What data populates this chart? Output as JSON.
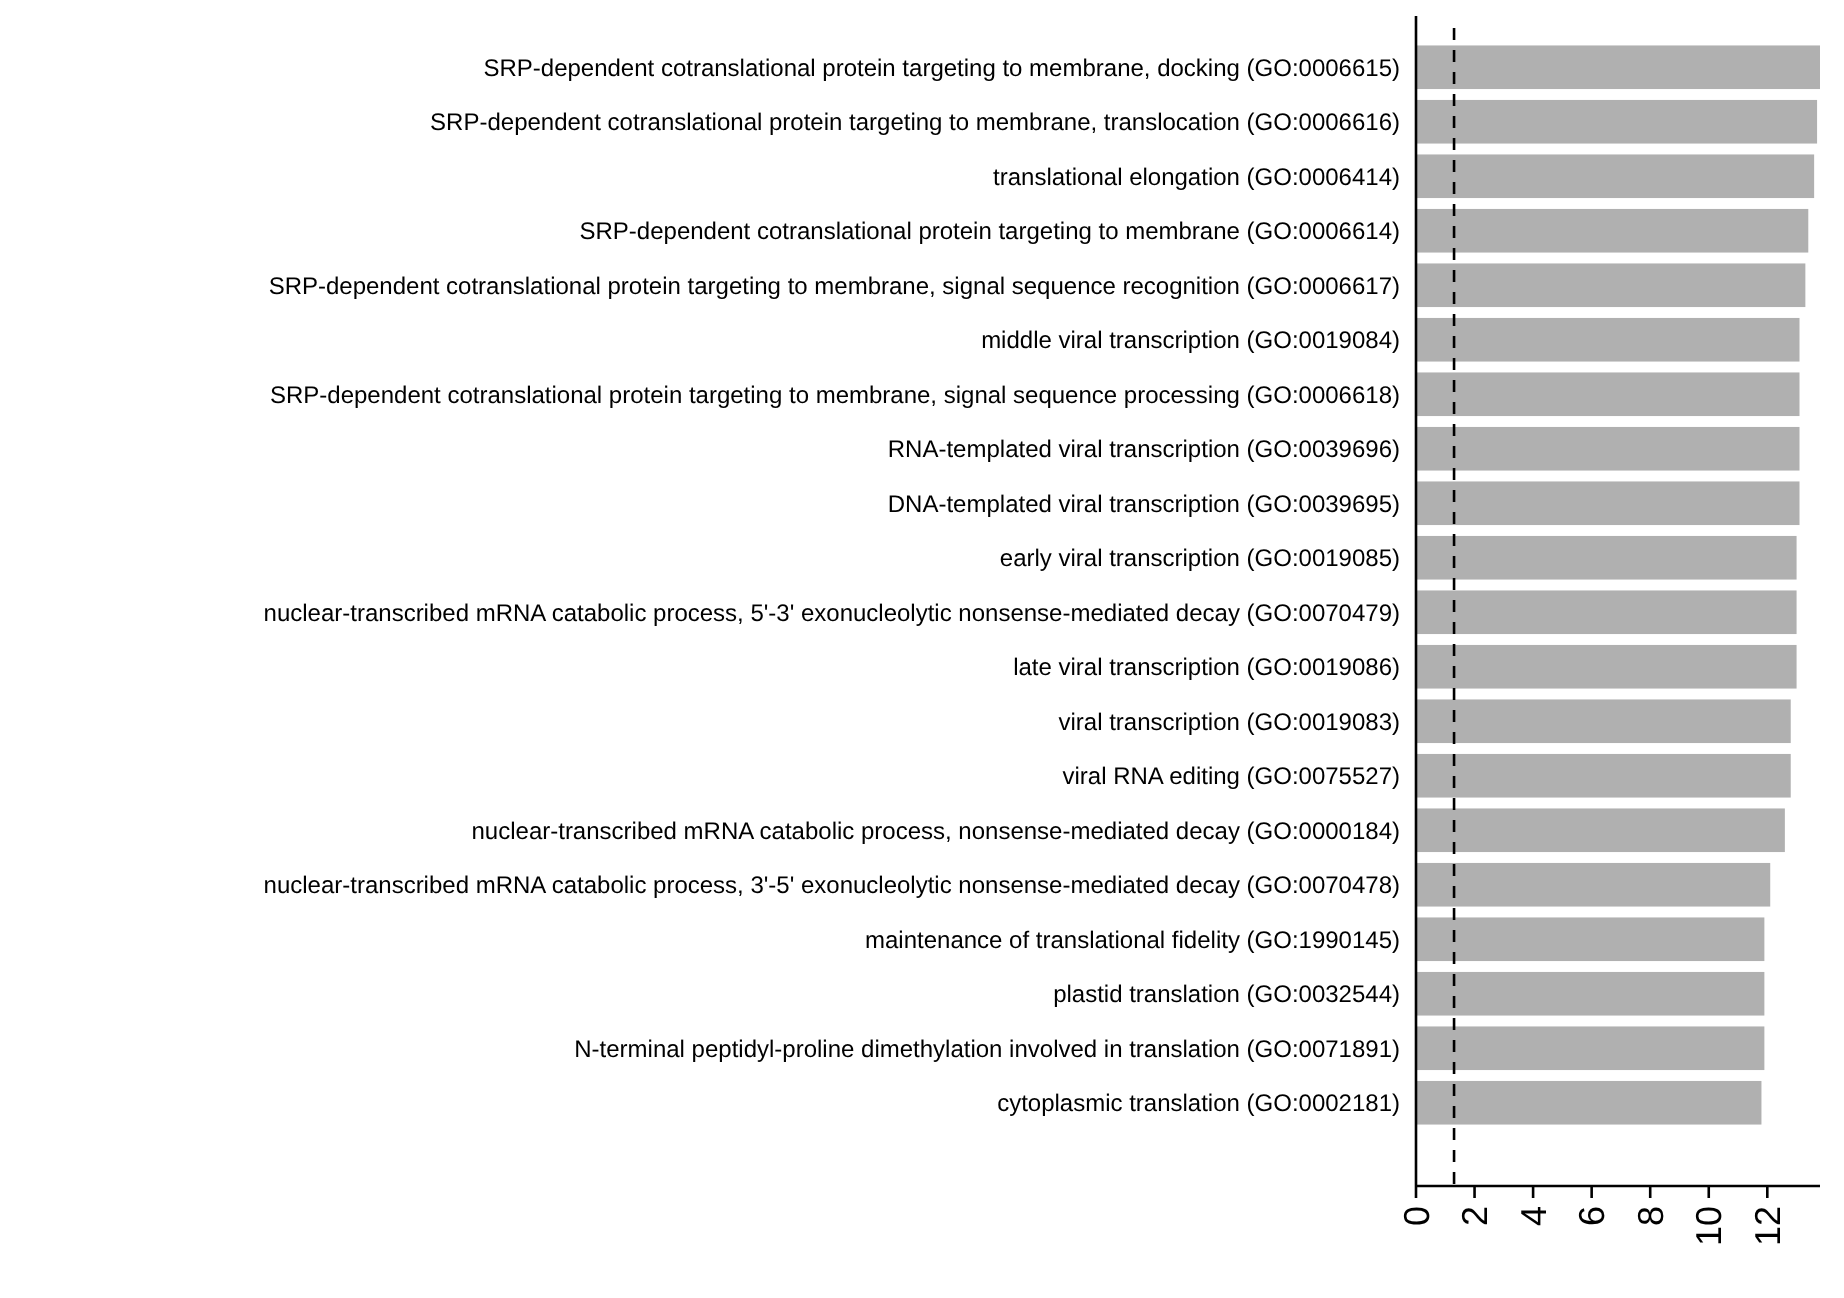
{
  "chart_data": {
    "type": "bar",
    "orientation": "horizontal",
    "color": "#b0b0b0",
    "categories": [
      "SRP-dependent cotranslational protein targeting to membrane, docking (GO:0006615)",
      "SRP-dependent cotranslational protein targeting to membrane, translocation (GO:0006616)",
      "translational elongation (GO:0006414)",
      "SRP-dependent cotranslational protein targeting to membrane (GO:0006614)",
      "SRP-dependent cotranslational protein targeting to membrane, signal sequence recognition (GO:0006617)",
      "middle viral transcription (GO:0019084)",
      "SRP-dependent cotranslational protein targeting to membrane, signal sequence processing (GO:0006618)",
      "RNA-templated viral transcription (GO:0039696)",
      "DNA-templated viral transcription (GO:0039695)",
      "early viral transcription (GO:0019085)",
      "nuclear-transcribed mRNA catabolic process, 5'-3' exonucleolytic nonsense-mediated decay (GO:0070479)",
      "late viral transcription (GO:0019086)",
      "viral transcription (GO:0019083)",
      "viral RNA editing (GO:0075527)",
      "nuclear-transcribed mRNA catabolic process, nonsense-mediated decay (GO:0000184)",
      "nuclear-transcribed mRNA catabolic process, 3'-5' exonucleolytic nonsense-mediated decay (GO:0070478)",
      "maintenance of translational fidelity (GO:1990145)",
      "plastid translation (GO:0032544)",
      "N-terminal peptidyl-proline dimethylation involved in translation (GO:0071891)",
      "cytoplasmic translation (GO:0002181)"
    ],
    "values": [
      13.8,
      13.7,
      13.6,
      13.4,
      13.3,
      13.1,
      13.1,
      13.1,
      13.1,
      13.0,
      13.0,
      13.0,
      12.8,
      12.8,
      12.6,
      12.1,
      11.9,
      11.9,
      11.9,
      11.8
    ],
    "xlim": [
      0,
      13.8
    ],
    "xticks": [
      0,
      2,
      4,
      6,
      8,
      10,
      12
    ],
    "ref_lines": [
      {
        "axis": "x",
        "value": 1.3,
        "line_style": "dashed",
        "color": "#000000"
      }
    ],
    "grid": false
  }
}
